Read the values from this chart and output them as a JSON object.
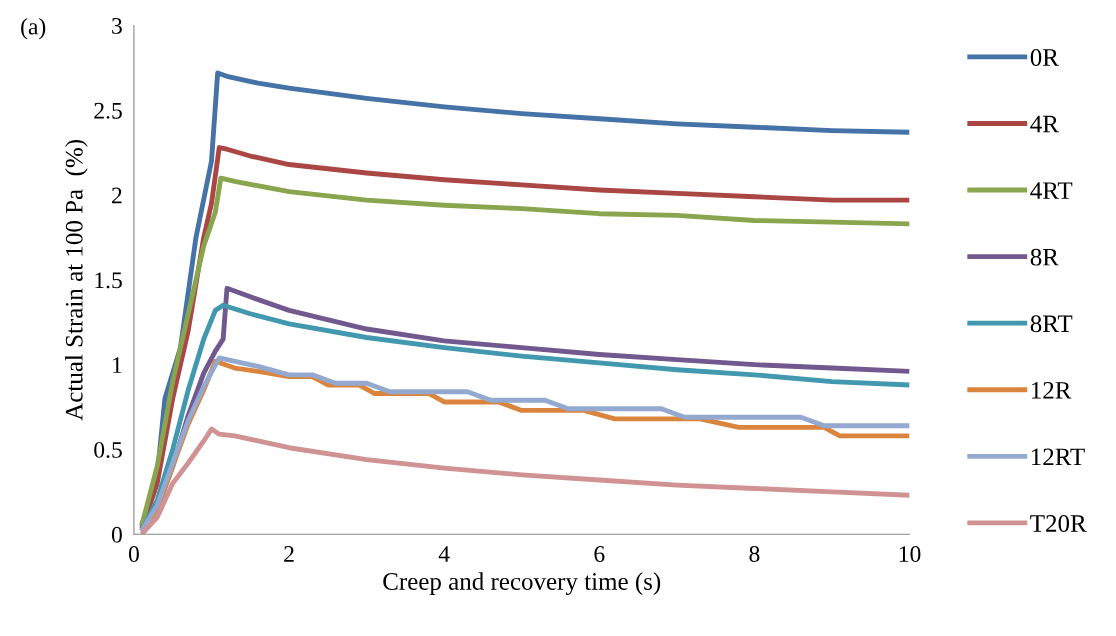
{
  "chart_data": {
    "type": "line",
    "xlabel": "Creep and recovery time (s)",
    "ylabel": "Actual Strain at 100 Pa  (%)",
    "annotations": [
      "(a)"
    ],
    "xlim": [
      0,
      10
    ],
    "xticks": [
      0,
      2,
      4,
      6,
      8,
      10
    ],
    "ylim": [
      0,
      3
    ],
    "yticks": [
      0,
      0.5,
      1,
      1.5,
      2,
      2.5,
      3
    ],
    "grid": false,
    "legend": "right",
    "marker": "none",
    "line_style": "solid",
    "series": [
      {
        "name": "0R",
        "color": "#4572a7",
        "x": [
          0.1,
          0.3,
          0.4,
          0.6,
          0.8,
          1.0,
          1.08,
          1.2,
          1.6,
          2,
          3,
          4,
          5,
          6,
          7,
          8,
          9,
          10
        ],
        "values": [
          0.05,
          0.35,
          0.8,
          1.1,
          1.75,
          2.2,
          2.72,
          2.7,
          2.66,
          2.63,
          2.57,
          2.52,
          2.48,
          2.45,
          2.42,
          2.4,
          2.38,
          2.37
        ]
      },
      {
        "name": "4R",
        "color": "#aa4643",
        "x": [
          0.1,
          0.3,
          0.5,
          0.7,
          0.9,
          1.0,
          1.1,
          1.2,
          1.5,
          2,
          3,
          4,
          5,
          6,
          7,
          8,
          9,
          10
        ],
        "values": [
          0.03,
          0.3,
          0.8,
          1.2,
          1.75,
          1.95,
          2.28,
          2.27,
          2.23,
          2.18,
          2.13,
          2.09,
          2.06,
          2.03,
          2.01,
          1.99,
          1.97,
          1.97
        ]
      },
      {
        "name": "4RT",
        "color": "#89a54e",
        "x": [
          0.1,
          0.3,
          0.5,
          0.7,
          0.9,
          1.05,
          1.12,
          1.3,
          2,
          3,
          4,
          5,
          6,
          7,
          8,
          9,
          10
        ],
        "values": [
          0.05,
          0.4,
          0.9,
          1.3,
          1.7,
          1.9,
          2.1,
          2.08,
          2.02,
          1.97,
          1.94,
          1.92,
          1.89,
          1.88,
          1.85,
          1.84,
          1.83
        ]
      },
      {
        "name": "8R",
        "color": "#71588f",
        "x": [
          0.1,
          0.3,
          0.5,
          0.7,
          0.9,
          1.05,
          1.15,
          1.2,
          1.5,
          2,
          3,
          4,
          5,
          6,
          7,
          8,
          9,
          10
        ],
        "values": [
          0.02,
          0.15,
          0.4,
          0.7,
          0.95,
          1.08,
          1.15,
          1.45,
          1.4,
          1.32,
          1.21,
          1.14,
          1.1,
          1.06,
          1.03,
          1.0,
          0.98,
          0.96
        ]
      },
      {
        "name": "8RT",
        "color": "#4198af",
        "x": [
          0.1,
          0.3,
          0.5,
          0.7,
          0.9,
          1.05,
          1.15,
          1.5,
          2,
          3,
          4,
          5,
          6,
          7,
          8,
          9,
          10
        ],
        "values": [
          0.02,
          0.2,
          0.5,
          0.85,
          1.15,
          1.32,
          1.35,
          1.3,
          1.24,
          1.16,
          1.1,
          1.05,
          1.01,
          0.97,
          0.94,
          0.9,
          0.88
        ]
      },
      {
        "name": "12R",
        "color": "#db843d",
        "x": [
          0.1,
          0.3,
          0.5,
          0.7,
          0.9,
          1.05,
          1.3,
          1.6,
          2,
          2.3,
          2.5,
          2.9,
          3.1,
          3.8,
          4.0,
          4.7,
          5.0,
          5.8,
          6.2,
          7.3,
          7.8,
          8.9,
          9.1,
          10
        ],
        "values": [
          0.02,
          0.15,
          0.4,
          0.65,
          0.85,
          1.02,
          0.98,
          0.96,
          0.93,
          0.93,
          0.88,
          0.88,
          0.83,
          0.83,
          0.78,
          0.78,
          0.73,
          0.73,
          0.68,
          0.68,
          0.63,
          0.63,
          0.58,
          0.58
        ]
      },
      {
        "name": "12RT",
        "color": "#93a9cf",
        "x": [
          0.1,
          0.3,
          0.5,
          0.7,
          0.9,
          1.1,
          1.6,
          2,
          2.3,
          2.6,
          3.0,
          3.3,
          4.3,
          4.6,
          5.3,
          5.6,
          6.8,
          7.1,
          8.6,
          8.9,
          10
        ],
        "values": [
          0.02,
          0.17,
          0.42,
          0.67,
          0.87,
          1.04,
          0.99,
          0.94,
          0.94,
          0.89,
          0.89,
          0.84,
          0.84,
          0.79,
          0.79,
          0.74,
          0.74,
          0.69,
          0.69,
          0.64,
          0.64
        ]
      },
      {
        "name": "T20R",
        "color": "#d09293",
        "x": [
          0.1,
          0.3,
          0.5,
          0.7,
          0.9,
          1.0,
          1.1,
          1.3,
          2,
          3,
          4,
          5,
          6,
          7,
          8,
          9,
          10
        ],
        "values": [
          0.0,
          0.1,
          0.3,
          0.42,
          0.55,
          0.62,
          0.59,
          0.58,
          0.51,
          0.44,
          0.39,
          0.35,
          0.32,
          0.29,
          0.27,
          0.25,
          0.23
        ]
      }
    ]
  }
}
